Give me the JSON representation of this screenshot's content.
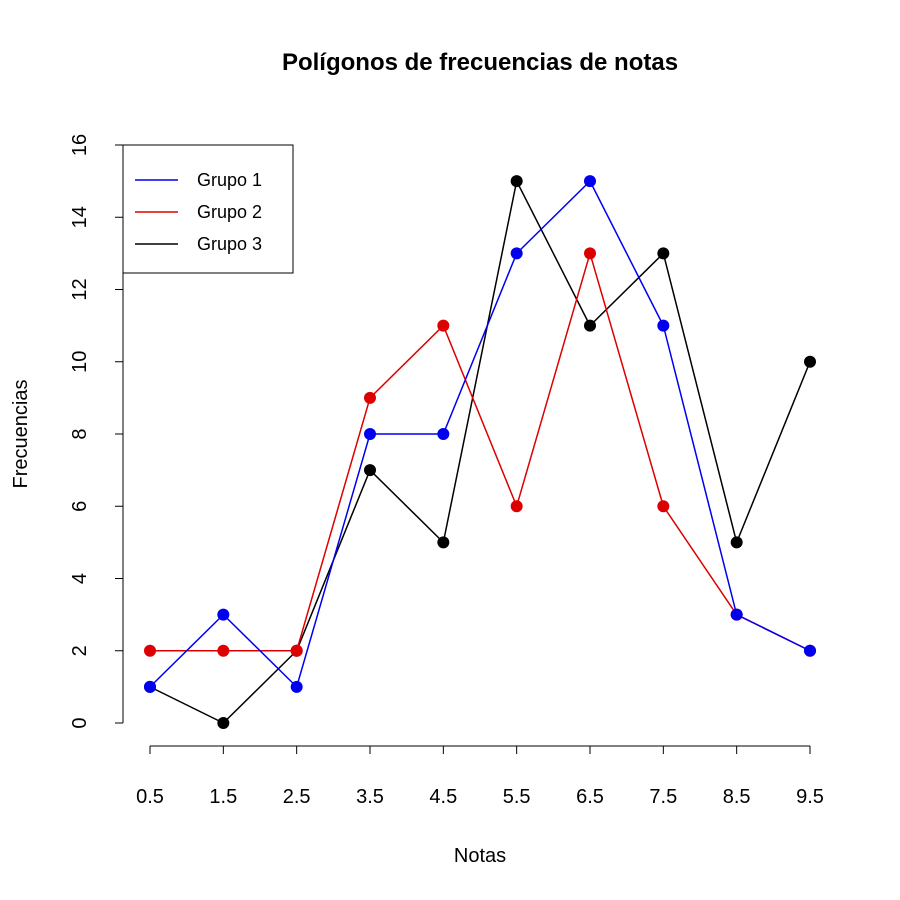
{
  "chart_data": {
    "type": "line",
    "title": "Polígonos de frecuencias de notas",
    "x_label": "Notas",
    "y_label": "Frecuencias",
    "x": [
      0.5,
      1.5,
      2.5,
      3.5,
      4.5,
      5.5,
      6.5,
      7.5,
      8.5,
      9.5
    ],
    "series": [
      {
        "name": "Grupo 1",
        "color": "#0000ee",
        "values": [
          1,
          3,
          1,
          8,
          8,
          13,
          15,
          11,
          3,
          2
        ]
      },
      {
        "name": "Grupo 2",
        "color": "#dd0000",
        "values": [
          2,
          2,
          2,
          9,
          11,
          6,
          13,
          6,
          3,
          2
        ]
      },
      {
        "name": "Grupo 3",
        "color": "#000000",
        "values": [
          1,
          0,
          2,
          7,
          5,
          15,
          11,
          13,
          5,
          10
        ]
      }
    ],
    "xlim": [
      0.5,
      9.5
    ],
    "ylim": [
      0,
      16
    ],
    "xticks": [
      0.5,
      1.5,
      2.5,
      3.5,
      4.5,
      5.5,
      6.5,
      7.5,
      8.5,
      9.5
    ],
    "yticks": [
      0,
      2,
      4,
      6,
      8,
      10,
      12,
      14,
      16
    ],
    "legend": "top-left"
  }
}
